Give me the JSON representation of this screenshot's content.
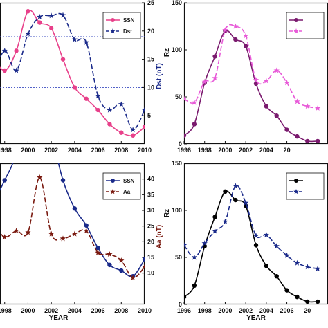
{
  "chart_data": [
    {
      "type": "line",
      "panel": "top-left",
      "xlim": [
        1997.6,
        2010
      ],
      "xticks": [
        "1998",
        "2000",
        "2002",
        "2004",
        "2006",
        "2008",
        "2010"
      ],
      "ylim_right": [
        0,
        25
      ],
      "yticks_right": [
        "5",
        "10",
        "15",
        "20",
        "25"
      ],
      "ylabel_right": "Dst (nT)",
      "ylabel_right_color": "#1a2a8a",
      "reference_lines_right": [
        10,
        19
      ],
      "legend": "top-right",
      "series": [
        {
          "name": "SSN",
          "axis": "left",
          "color": "#e8408a",
          "marker": "circle",
          "dash": false,
          "x": [
            1997,
            1998,
            1999,
            2000,
            2001,
            2002,
            2003,
            2004,
            2005,
            2006,
            2007,
            2008,
            2009,
            2010
          ],
          "y": [
            15.5,
            13,
            16.5,
            23.5,
            21.5,
            20.5,
            15,
            10,
            8,
            6,
            3.5,
            2,
            1.5,
            3
          ]
        },
        {
          "name": "Dst",
          "axis": "right",
          "color": "#1a2a8a",
          "marker": "star",
          "dash": true,
          "x": [
            1997,
            1998,
            1999,
            2000,
            2001,
            2002,
            2003,
            2004,
            2005,
            2006,
            2007,
            2008,
            2009,
            2010
          ],
          "y": [
            12,
            16.5,
            13,
            19.5,
            22.5,
            22.7,
            22.8,
            18.5,
            18,
            8.5,
            6,
            7,
            2.5,
            6
          ]
        }
      ]
    },
    {
      "type": "line",
      "panel": "top-right",
      "xlim": [
        1996,
        2010
      ],
      "xticks": [
        "1996",
        "1998",
        "2000",
        "2002",
        "2004",
        "20"
      ],
      "ylim": [
        0,
        150
      ],
      "yticks": [
        "0",
        "50",
        "100",
        "150"
      ],
      "ylabel": "Rz",
      "legend": "top-right",
      "series": [
        {
          "name": "",
          "color": "#7a1a6e",
          "marker": "circle",
          "dash": false,
          "x": [
            1996,
            1997,
            1998,
            1999,
            2000,
            2001,
            2002,
            2003,
            2004,
            2005,
            2006,
            2007,
            2008,
            2009
          ],
          "y": [
            9,
            21,
            65,
            93,
            120,
            111,
            104,
            64,
            40,
            30,
            15,
            8,
            3,
            3
          ]
        },
        {
          "name": "",
          "color": "#e85ad8",
          "marker": "star",
          "dash": true,
          "x": [
            1996,
            1997,
            1998,
            1999,
            2000,
            2001,
            2002,
            2003,
            2004,
            2005,
            2006,
            2007,
            2008,
            2009
          ],
          "y": [
            48,
            44,
            66,
            70,
            121,
            125,
            115,
            68,
            67,
            78,
            65,
            45,
            40,
            38
          ]
        }
      ]
    },
    {
      "type": "line",
      "panel": "bottom-left",
      "xlim": [
        1997.6,
        2010
      ],
      "xticks": [
        "1998",
        "2000",
        "2002",
        "2004",
        "2006",
        "2008",
        "2010"
      ],
      "xlabel": "YEAR",
      "ylim_right": [
        0,
        45
      ],
      "yticks_right": [
        "10",
        "15",
        "20",
        "25",
        "30",
        "35",
        "40"
      ],
      "ylabel_right": "Aa (nT)",
      "ylabel_right_color": "#7a1a10",
      "legend": "top-right",
      "series": [
        {
          "name": "SSN",
          "axis": "left",
          "color": "#1a2a8a",
          "marker": "circle",
          "dash": false,
          "x": [
            1997,
            1998,
            1999,
            2000,
            2001,
            2002,
            2003,
            2004,
            2005,
            2006,
            2007,
            2008,
            2009,
            2010
          ],
          "y": [
            18,
            22,
            27,
            38,
            35,
            30,
            22,
            17,
            14,
            10,
            7,
            6,
            5,
            8
          ]
        },
        {
          "name": "Aa",
          "axis": "right",
          "color": "#7a1a10",
          "marker": "star",
          "dash": true,
          "x": [
            1997,
            1998,
            1999,
            2000,
            2001,
            2002,
            2003,
            2004,
            2005,
            2006,
            2007,
            2008,
            2009,
            2010
          ],
          "y": [
            26,
            21.5,
            23.5,
            23,
            40.5,
            22.5,
            21,
            22.5,
            23.5,
            16.5,
            16,
            14,
            8.5,
            12
          ]
        }
      ]
    },
    {
      "type": "line",
      "panel": "bottom-right",
      "xlim": [
        1996,
        2010
      ],
      "xticks": [
        "1996",
        "1998",
        "2000",
        "2002",
        "2004",
        "2006",
        "20"
      ],
      "xlabel": "YEAR",
      "ylim": [
        0,
        150
      ],
      "yticks": [
        "0",
        "50",
        "100",
        "150"
      ],
      "ylabel": "Rz",
      "legend": "top-right",
      "series": [
        {
          "name": "",
          "color": "#000000",
          "marker": "circle",
          "dash": false,
          "x": [
            1996,
            1997,
            1998,
            1999,
            2000,
            2001,
            2002,
            2003,
            2004,
            2005,
            2006,
            2007,
            2008,
            2009
          ],
          "y": [
            8,
            20,
            62,
            93,
            120,
            111,
            105,
            63,
            41,
            30,
            15,
            8,
            3,
            3
          ]
        },
        {
          "name": "",
          "color": "#1a2a8a",
          "marker": "star",
          "dash": true,
          "x": [
            1996,
            1997,
            1998,
            1999,
            2000,
            2001,
            2002,
            2003,
            2004,
            2005,
            2006,
            2007,
            2008,
            2009
          ],
          "y": [
            63,
            50,
            65,
            78,
            88,
            126,
            108,
            73,
            74,
            62,
            52,
            44,
            40,
            38
          ]
        }
      ]
    }
  ]
}
